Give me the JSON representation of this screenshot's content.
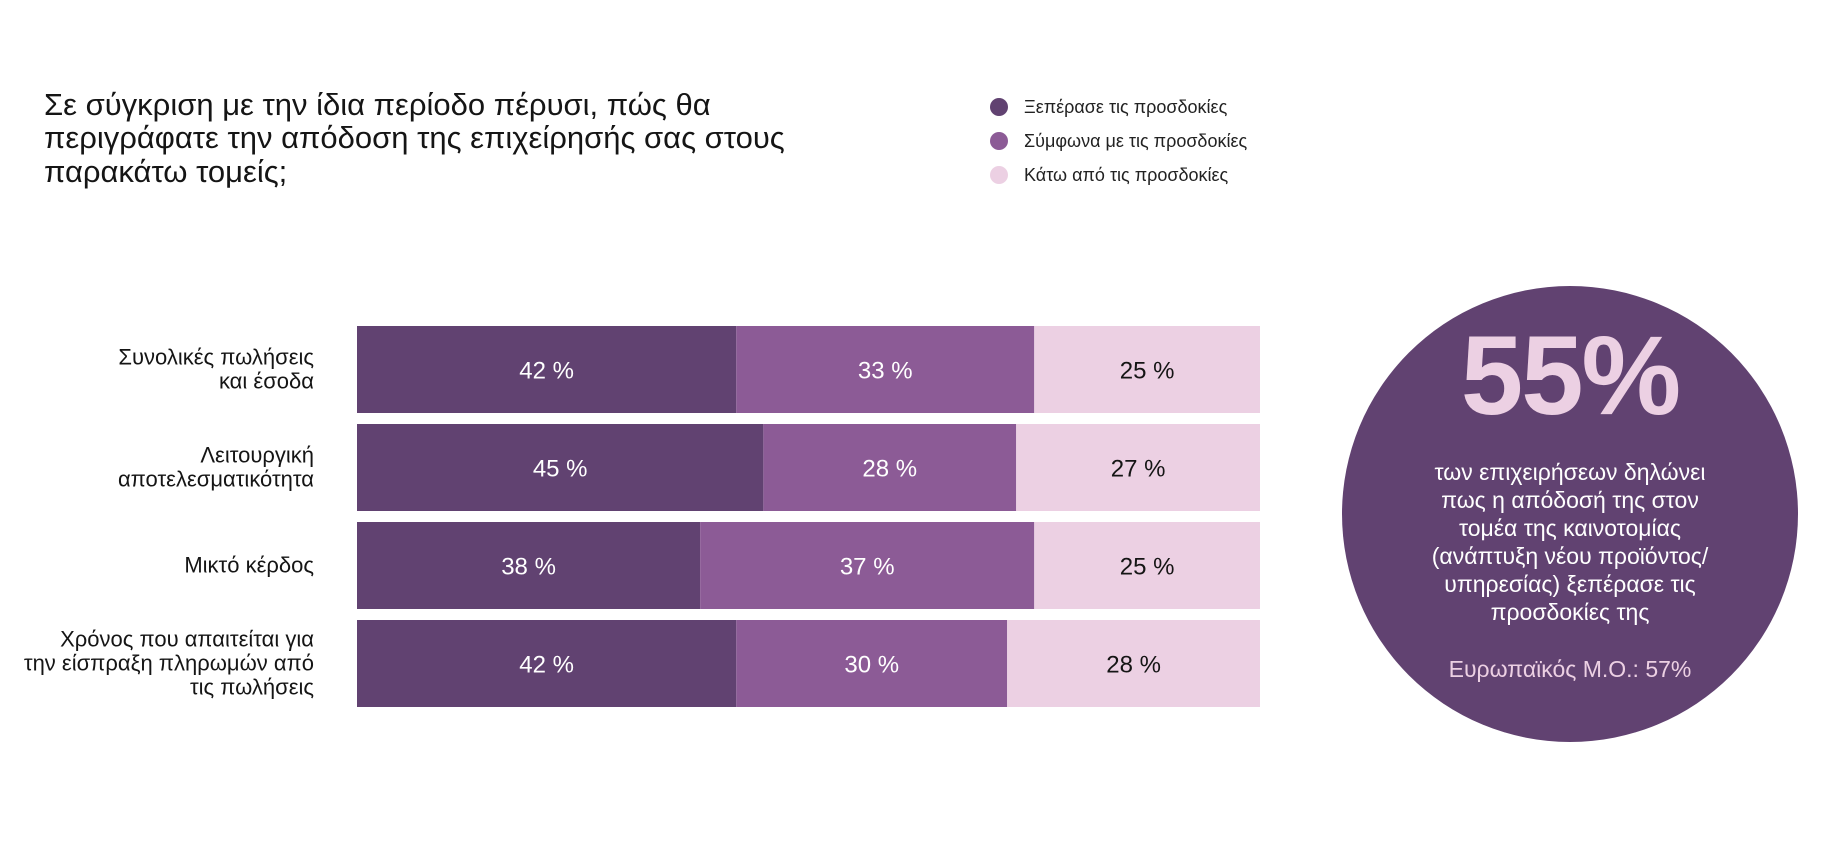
{
  "title": "Σε σύγκριση με την ίδια περίοδο πέρυσι, πώς θα περιγράφατε την απόδοση της επιχείρησής σας στους παρακάτω τομείς;",
  "legend": [
    {
      "label": "Ξεπέρασε τις προσδοκίες",
      "color": "#614271"
    },
    {
      "label": "Σύμφωνα με τις προσδοκίες",
      "color": "#8c5b96"
    },
    {
      "label": "Κάτω από τις προσδοκίες",
      "color": "#ecd0e3"
    }
  ],
  "chart_data": {
    "type": "bar",
    "orientation": "horizontal",
    "stacked": true,
    "categories": [
      [
        "Συνολικές πωλήσεις",
        "και έσοδα"
      ],
      [
        "Λειτουργική",
        "αποτελεσματικότητα"
      ],
      [
        "Μικτό κέρδος"
      ],
      [
        "Χρόνος που απαιτείται για",
        "την είσπραξη πληρωμών από",
        "τις πωλήσεις"
      ]
    ],
    "series": [
      {
        "name": "Ξεπέρασε τις προσδοκίες",
        "values": [
          42,
          45,
          38,
          42
        ],
        "color": "#614271",
        "label_color": "#ffffff"
      },
      {
        "name": "Σύμφωνα με τις προσδοκίες",
        "values": [
          33,
          28,
          37,
          30
        ],
        "color": "#8c5b96",
        "label_color": "#ffffff"
      },
      {
        "name": "Κάτω από τις προσδοκίες",
        "values": [
          25,
          27,
          25,
          28
        ],
        "color": "#ecd0e3",
        "label_color": "#151515"
      }
    ],
    "value_suffix": " %",
    "xlim": [
      0,
      100
    ]
  },
  "highlight": {
    "value": "55%",
    "description": "των επιχειρήσεων δηλώνει πως η απόδοσή της στον τομέα της καινοτομίας (ανάπτυξη νέου προϊόντος/ υπηρεσίας) ξεπέρασε τις προσδοκίες της",
    "average": "Ευρωπαϊκός Μ.Ο.: 57%"
  }
}
